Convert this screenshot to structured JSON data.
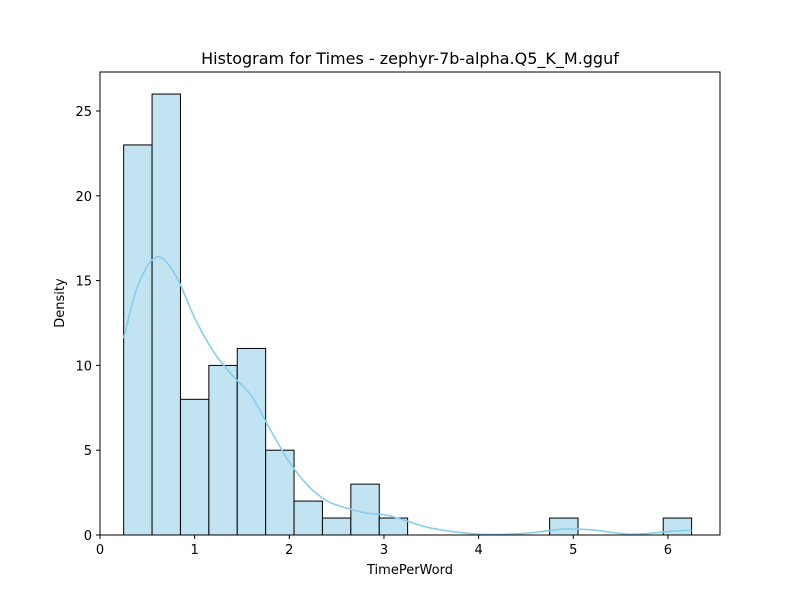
{
  "chart_data": {
    "type": "bar",
    "title": "Histogram for Times - zephyr-7b-alpha.Q5_K_M.gguf",
    "xlabel": "TimePerWord",
    "ylabel": "Density",
    "xlim": [
      0,
      6.55
    ],
    "ylim": [
      0,
      27.3
    ],
    "xticks": [
      0,
      1,
      2,
      3,
      4,
      5,
      6
    ],
    "yticks": [
      0,
      5,
      10,
      15,
      20,
      25
    ],
    "bar_color": "#c2e4f2",
    "edge_color": "#000000",
    "kde_color": "#87ceeb",
    "bins": [
      {
        "start": 0.25,
        "end": 0.55,
        "value": 23
      },
      {
        "start": 0.55,
        "end": 0.85,
        "value": 26
      },
      {
        "start": 0.85,
        "end": 1.15,
        "value": 8
      },
      {
        "start": 1.15,
        "end": 1.45,
        "value": 10
      },
      {
        "start": 1.45,
        "end": 1.75,
        "value": 11
      },
      {
        "start": 1.75,
        "end": 2.05,
        "value": 5
      },
      {
        "start": 2.05,
        "end": 2.35,
        "value": 2
      },
      {
        "start": 2.35,
        "end": 2.65,
        "value": 1
      },
      {
        "start": 2.65,
        "end": 2.95,
        "value": 3
      },
      {
        "start": 2.95,
        "end": 3.25,
        "value": 1
      },
      {
        "start": 4.75,
        "end": 5.05,
        "value": 1
      },
      {
        "start": 5.95,
        "end": 6.25,
        "value": 1
      }
    ],
    "kde": {
      "x": [
        0.25,
        0.4,
        0.6,
        0.8,
        1.0,
        1.2,
        1.4,
        1.6,
        1.8,
        2.0,
        2.2,
        2.4,
        2.6,
        2.8,
        3.0,
        3.2,
        3.5,
        4.0,
        4.5,
        4.9,
        5.2,
        5.6,
        6.0,
        6.25
      ],
      "y": [
        11.6,
        14.7,
        16.4,
        15.3,
        12.8,
        10.8,
        9.4,
        8.2,
        6.2,
        4.3,
        2.9,
        2.0,
        1.6,
        1.3,
        1.2,
        0.9,
        0.4,
        0.05,
        0.1,
        0.35,
        0.3,
        0.05,
        0.2,
        0.3
      ]
    }
  }
}
